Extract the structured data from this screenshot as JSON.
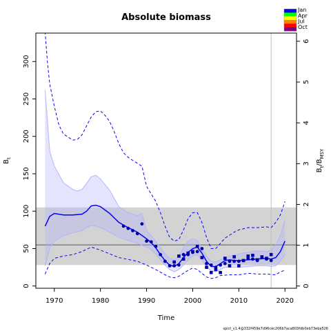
{
  "chart_data": {
    "type": "line",
    "title": "Absolute biomass",
    "xlabel": "Time",
    "ylabel_left": "B",
    "ylabel_left_sub": "t",
    "ylabel_right": "B",
    "ylabel_right_sub1": "t",
    "ylabel_right_mid": "/B",
    "ylabel_right_sub2": "MSY",
    "xlim": [
      1966,
      2022.5
    ],
    "ylim_left": [
      -3,
      338
    ],
    "ylim_right": [
      -0.055,
      6.2
    ],
    "right_axis_scale": 54.5,
    "x_ticks": [
      "1970",
      "1980",
      "1990",
      "2000",
      "2010",
      "2020"
    ],
    "y_ticks_left": [
      "0",
      "50",
      "100",
      "150",
      "200",
      "250",
      "300"
    ],
    "y_ticks_right": [
      "0",
      "1",
      "2",
      "3",
      "4",
      "5",
      "6"
    ],
    "grid": false,
    "footnote": "spict_v1.4@332f459e7d96cec206b7aca803fdb0eb73eba526",
    "legend": {
      "position": "top-right",
      "labels": [
        "Jan",
        "Apr",
        "Jul",
        "Oct"
      ],
      "colors": [
        "#0000ff",
        "#00ff00",
        "#ffff00",
        "#ff8000",
        "#ff0000",
        "#800080"
      ]
    },
    "colors": {
      "estimate": "#0000ff",
      "estimate_band": "#b3b3ff",
      "estimate_band_alpha": 0.35,
      "outer_ci": "#0000ff",
      "bmsy_band": "#d3d3d3",
      "bmsy_line": "#555555",
      "obs": "#0000a8",
      "vline": "#bebebe"
    },
    "bmsy_band": [
      28,
      105
    ],
    "bmsy": 55,
    "vline_x": 2017,
    "series": [
      {
        "role": "estimate",
        "x": [
          1968,
          1969,
          1970,
          1972,
          1974,
          1976,
          1977,
          1978,
          1979,
          1980,
          1982,
          1984,
          1986,
          1988,
          1990,
          1991,
          1992,
          1993,
          1994,
          1995,
          1996,
          1997,
          1998,
          1999,
          2000,
          2001,
          2002,
          2003,
          2004,
          2005,
          2006,
          2007,
          2008,
          2009,
          2010,
          2012,
          2014,
          2016,
          2017,
          2018,
          2019,
          2020
        ],
        "values": [
          80,
          93,
          97,
          95,
          95,
          96,
          100,
          107,
          108,
          106,
          97,
          85,
          78,
          72,
          63,
          58,
          51,
          42,
          34,
          28,
          26,
          30,
          38,
          45,
          50,
          52,
          44,
          33,
          26,
          26,
          30,
          34,
          35,
          34,
          34,
          35,
          36,
          37,
          36,
          38,
          46,
          60
        ]
      },
      {
        "role": "band_upper",
        "x": [
          1968,
          1969,
          1970,
          1972,
          1974,
          1975,
          1976,
          1977,
          1978,
          1979,
          1980,
          1982,
          1984,
          1986,
          1988,
          1989,
          1990,
          1991,
          1992,
          1993,
          1994,
          1995,
          1996,
          1997,
          1998,
          1999,
          2000,
          2001,
          2002,
          2003,
          2004,
          2005,
          2006,
          2007,
          2008,
          2010,
          2012,
          2014,
          2016,
          2017,
          2018,
          2019,
          2020
        ],
        "values": [
          262,
          180,
          160,
          138,
          129,
          127,
          129,
          137,
          146,
          148,
          143,
          128,
          106,
          98,
          94,
          97,
          74,
          67,
          60,
          51,
          43,
          37,
          35,
          40,
          51,
          60,
          63,
          61,
          50,
          40,
          33,
          32,
          35,
          38,
          40,
          43,
          45,
          47,
          46,
          48,
          55,
          68,
          88
        ]
      },
      {
        "role": "band_lower",
        "x": [
          1968,
          1969,
          1970,
          1972,
          1974,
          1976,
          1977,
          1978,
          1979,
          1980,
          1982,
          1984,
          1986,
          1988,
          1990,
          1991,
          1992,
          1993,
          1994,
          1995,
          1996,
          1997,
          1998,
          1999,
          2000,
          2001,
          2002,
          2003,
          2004,
          2005,
          2006,
          2007,
          2008,
          2010,
          2012,
          2014,
          2016,
          2017,
          2018,
          2019,
          2020
        ],
        "values": [
          27,
          50,
          60,
          67,
          71,
          74,
          78,
          81,
          80,
          78,
          72,
          65,
          61,
          57,
          52,
          48,
          43,
          35,
          28,
          22,
          19,
          22,
          28,
          35,
          40,
          42,
          35,
          26,
          20,
          19,
          22,
          25,
          25,
          25,
          26,
          27,
          27,
          26,
          27,
          33,
          42
        ]
      },
      {
        "role": "ci_upper",
        "x": [
          1968,
          1968.5,
          1969,
          1970,
          1971,
          1972,
          1973,
          1974,
          1975,
          1976,
          1977,
          1978,
          1979,
          1980,
          1981,
          1982,
          1983,
          1984,
          1985,
          1986,
          1987,
          1988,
          1989,
          1990,
          1991,
          1992,
          1993,
          1994,
          1995,
          1996,
          1997,
          1998,
          1999,
          2000,
          2001,
          2002,
          2003,
          2004,
          2005,
          2006,
          2007,
          2008,
          2009,
          2010,
          2012,
          2014,
          2016,
          2017,
          2018,
          2019,
          2020
        ],
        "values": [
          340,
          300,
          270,
          240,
          215,
          203,
          199,
          195,
          196,
          202,
          214,
          226,
          233,
          234,
          228,
          220,
          206,
          190,
          178,
          172,
          168,
          164,
          160,
          133,
          123,
          113,
          98,
          80,
          65,
          60,
          62,
          75,
          90,
          98,
          98,
          85,
          65,
          50,
          50,
          57,
          64,
          68,
          72,
          75,
          78,
          78,
          79,
          78,
          85,
          95,
          113
        ]
      },
      {
        "role": "ci_lower",
        "x": [
          1968,
          1969,
          1970,
          1972,
          1974,
          1976,
          1978,
          1980,
          1984,
          1988,
          1990,
          1992,
          1994,
          1995,
          1996,
          1997,
          1998,
          1999,
          2000,
          2001,
          2002,
          2003,
          2004,
          2005,
          2006,
          2008,
          2010,
          2012,
          2014,
          2016,
          2018,
          2019,
          2020
        ],
        "values": [
          16,
          30,
          37,
          40,
          42,
          46,
          52,
          48,
          38,
          33,
          28,
          22,
          15,
          12,
          11,
          13,
          17,
          21,
          24,
          22,
          17,
          12,
          10,
          11,
          14,
          15,
          15,
          17,
          16,
          16,
          15,
          19,
          21
        ]
      },
      {
        "role": "obs_circles",
        "x": [
          1985,
          1986,
          1987,
          1988,
          1989,
          1990,
          1991,
          1992,
          1993,
          1994,
          1995,
          1996,
          1997,
          1998,
          1999,
          2000,
          2001,
          2002,
          2003,
          2004,
          2005,
          2006,
          2007,
          2008,
          2009,
          2010,
          2011,
          2012,
          2013,
          2014,
          2015,
          2016,
          2017
        ],
        "values": [
          80,
          77,
          74,
          70,
          83,
          60,
          59,
          53,
          42,
          33,
          27,
          27,
          28,
          42,
          42,
          45,
          46,
          50,
          30,
          28,
          25,
          28,
          30,
          33,
          33,
          33,
          34,
          37,
          36,
          34,
          38,
          36,
          34
        ]
      },
      {
        "role": "obs_squares",
        "x": [
          1996,
          1997,
          1998,
          1999,
          2000,
          2001,
          2002,
          2003,
          2004,
          2005,
          2006,
          2007,
          2008,
          2009,
          2010,
          2011,
          2012,
          2013,
          2014,
          2015,
          2016,
          2017
        ],
        "values": [
          32,
          40,
          36,
          44,
          46,
          53,
          38,
          25,
          18,
          22,
          18,
          37,
          27,
          39,
          27,
          34,
          40,
          41,
          35,
          39,
          37,
          42
        ]
      }
    ]
  }
}
